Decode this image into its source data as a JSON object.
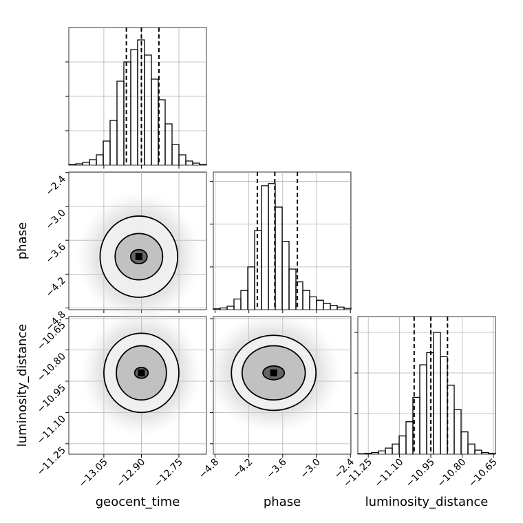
{
  "chart_data": {
    "type": "corner",
    "parameters": [
      {
        "name": "geocent_time",
        "lim": [
          -13.19,
          -12.64
        ],
        "ticks": [
          {
            "value": -13.05,
            "label": "−13.05"
          },
          {
            "value": -12.9,
            "label": "−12.90"
          },
          {
            "value": -12.75,
            "label": "−12.75"
          }
        ]
      },
      {
        "name": "phase",
        "lim": [
          -4.83,
          -2.39
        ],
        "ticks": [
          {
            "value": -4.8,
            "label": "−4.8"
          },
          {
            "value": -4.2,
            "label": "−4.2"
          },
          {
            "value": -3.6,
            "label": "−3.6"
          },
          {
            "value": -3.0,
            "label": "−3.0"
          },
          {
            "value": -2.4,
            "label": "−2.4"
          }
        ]
      },
      {
        "name": "luminosity_distance",
        "lim": [
          -11.3,
          -10.64
        ],
        "ticks": [
          {
            "value": -11.25,
            "label": "−11.25"
          },
          {
            "value": -11.1,
            "label": "−11.10"
          },
          {
            "value": -10.95,
            "label": "−10.95"
          },
          {
            "value": -10.8,
            "label": "−10.80"
          },
          {
            "value": -10.65,
            "label": "−10.65"
          }
        ]
      }
    ],
    "histograms": [
      {
        "bins": [
          -13.19,
          -13.1625,
          -13.135,
          -13.1075,
          -13.08,
          -13.0525,
          -13.025,
          -12.9975,
          -12.97,
          -12.9425,
          -12.915,
          -12.8875,
          -12.86,
          -12.8325,
          -12.805,
          -12.7775,
          -12.75,
          -12.7225,
          -12.695,
          -12.6675,
          -12.64
        ],
        "counts": [
          1,
          2,
          4,
          8,
          15,
          35,
          65,
          122,
          150,
          168,
          182,
          160,
          125,
          95,
          60,
          30,
          15,
          6,
          3,
          1
        ],
        "ylim": [
          0,
          200
        ],
        "yticks": [
          50,
          100,
          150
        ],
        "quantiles": [
          -12.96,
          -12.9,
          -12.83
        ]
      },
      {
        "bins": [
          -4.83,
          -4.708,
          -4.586,
          -4.464,
          -4.342,
          -4.22,
          -4.098,
          -3.976,
          -3.854,
          -3.732,
          -3.61,
          -3.488,
          -3.366,
          -3.244,
          -3.122,
          -3.0,
          -2.878,
          -2.756,
          -2.634,
          -2.512,
          -2.39
        ],
        "counts": [
          2,
          4,
          8,
          25,
          45,
          100,
          185,
          290,
          295,
          240,
          160,
          95,
          65,
          45,
          30,
          22,
          15,
          10,
          6,
          3
        ],
        "ylim": [
          0,
          322
        ],
        "yticks": [
          100,
          200,
          300
        ],
        "quantiles": [
          -4.05,
          -3.74,
          -3.34
        ]
      },
      {
        "bins": [
          -11.3,
          -11.267,
          -11.234,
          -11.201,
          -11.168,
          -11.135,
          -11.102,
          -11.069,
          -11.036,
          -11.003,
          -10.97,
          -10.937,
          -10.904,
          -10.871,
          -10.838,
          -10.805,
          -10.772,
          -10.739,
          -10.706,
          -10.673,
          -10.64
        ],
        "counts": [
          1,
          2,
          4,
          8,
          15,
          25,
          45,
          80,
          140,
          220,
          250,
          300,
          240,
          170,
          110,
          55,
          25,
          10,
          4,
          2
        ],
        "ylim": [
          0,
          339
        ],
        "yticks": [
          100,
          200,
          300
        ],
        "quantiles": [
          -11.03,
          -10.95,
          -10.87
        ]
      }
    ],
    "contours": [
      {
        "x": 0,
        "y": 1,
        "center": [
          -12.91,
          -3.89
        ],
        "levels": [
          [
            0.155,
            0.72
          ],
          [
            0.095,
            0.41
          ],
          [
            0.033,
            0.125
          ]
        ]
      },
      {
        "x": 0,
        "y": 2,
        "center": [
          -12.9,
          -10.91
        ],
        "levels": [
          [
            0.15,
            0.19
          ],
          [
            0.1,
            0.13
          ],
          [
            0.027,
            0.026
          ]
        ]
      },
      {
        "x": 1,
        "y": 2,
        "center": [
          -3.76,
          -10.91
        ],
        "levels": [
          [
            0.75,
            0.18
          ],
          [
            0.56,
            0.13
          ],
          [
            0.19,
            0.033
          ]
        ]
      }
    ]
  }
}
